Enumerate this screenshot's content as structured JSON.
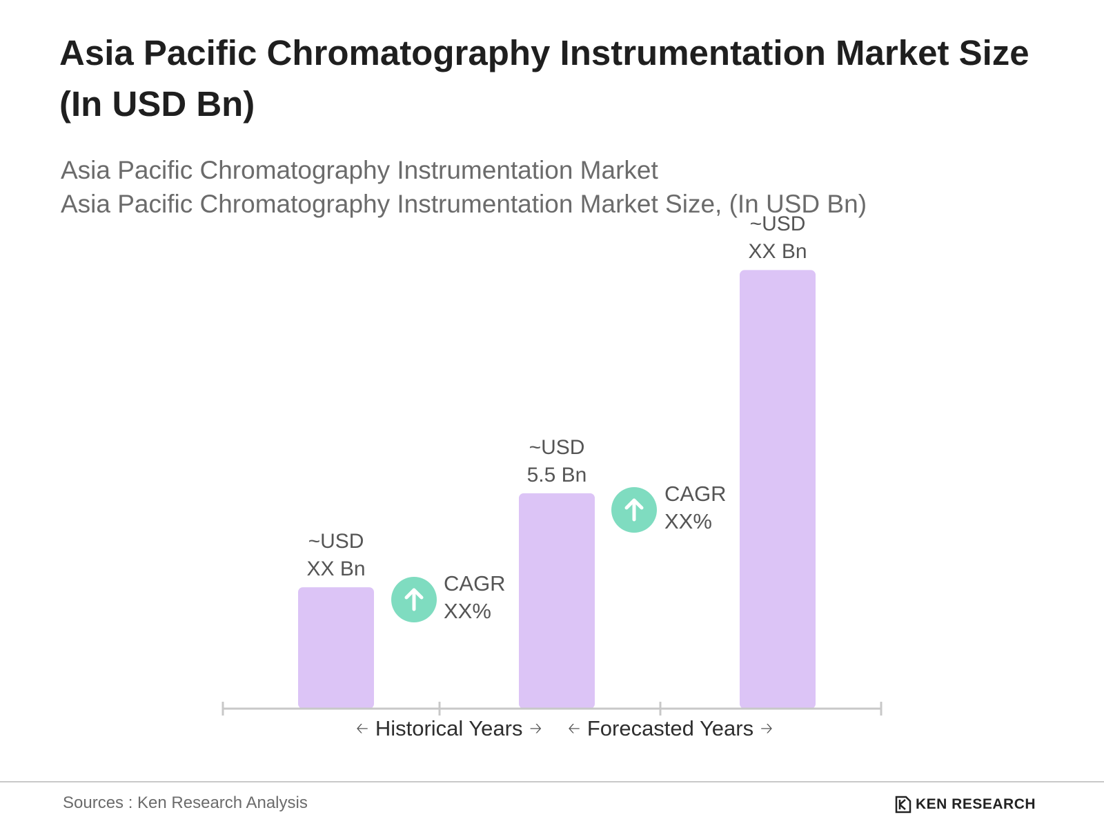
{
  "title": "Asia Pacific Chromatography Instrumentation Market Size (In USD Bn)",
  "subtitle_lines": [
    "Asia Pacific Chromatography Instrumentation Market",
    "Asia Pacific Chromatography Instrumentation Market Size, (In USD Bn)"
  ],
  "chart_data": {
    "type": "bar",
    "title": "Asia Pacific Chromatography Instrumentation Market Size (In USD Bn)",
    "categories": [
      "",
      "",
      ""
    ],
    "values": [
      3.1,
      5.5,
      11.2
    ],
    "value_labels": [
      [
        "~USD",
        "XX Bn"
      ],
      [
        "~USD",
        "5.5 Bn"
      ],
      [
        "~USD",
        "XX Bn"
      ]
    ],
    "ylim": [
      0,
      12
    ],
    "grid": false,
    "bar_color": "#dcc4f6",
    "axis_color": "#c8c8c8",
    "cagr_annotations": [
      {
        "label": "CAGR",
        "value": "XX%",
        "icon": "arrow-up-icon"
      },
      {
        "label": "CAGR",
        "value": "XX%",
        "icon": "arrow-up-icon"
      }
    ],
    "periods": [
      "Historical Years",
      "Forecasted Years"
    ]
  },
  "colors": {
    "accent_green": "#7fdcc0",
    "bar": "#dcc4f6"
  },
  "footer": {
    "source": "Sources : Ken Research Analysis",
    "brand": "KEN RESEARCH"
  }
}
